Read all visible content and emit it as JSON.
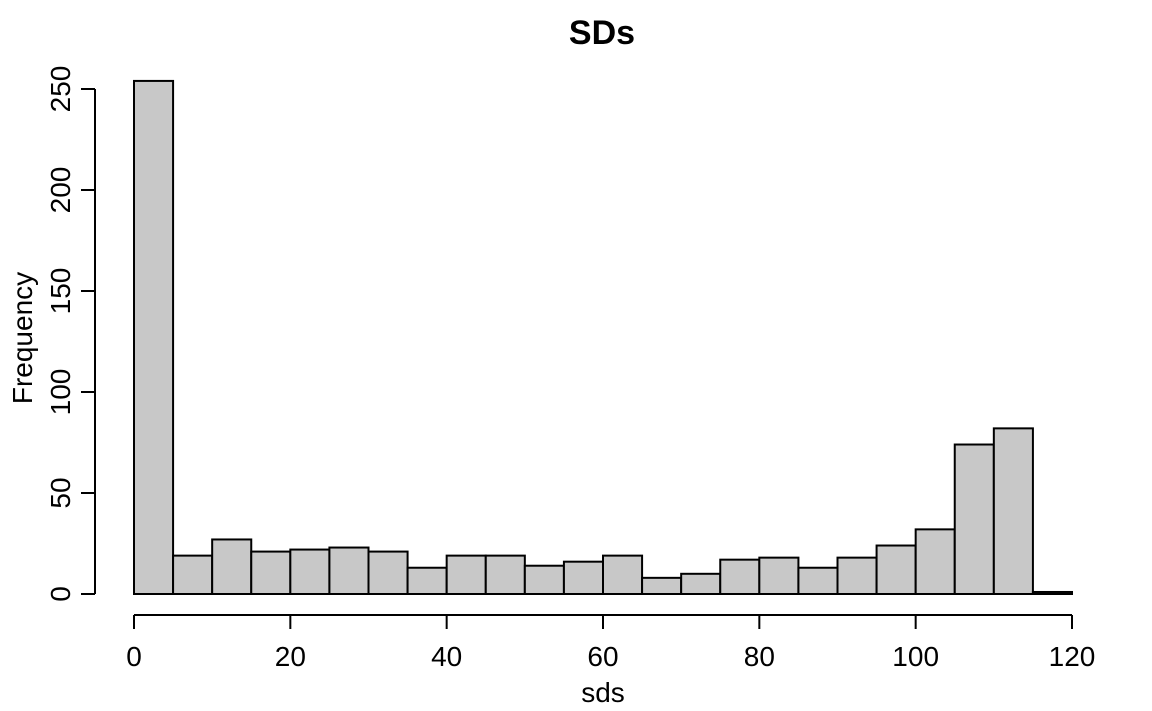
{
  "chart_data": {
    "type": "bar",
    "title": "SDs",
    "xlabel": "sds",
    "ylabel": "Frequency",
    "bin_width": 5,
    "bins": [
      [
        0,
        5
      ],
      [
        5,
        10
      ],
      [
        10,
        15
      ],
      [
        15,
        20
      ],
      [
        20,
        25
      ],
      [
        25,
        30
      ],
      [
        30,
        35
      ],
      [
        35,
        40
      ],
      [
        40,
        45
      ],
      [
        45,
        50
      ],
      [
        50,
        55
      ],
      [
        55,
        60
      ],
      [
        60,
        65
      ],
      [
        65,
        70
      ],
      [
        70,
        75
      ],
      [
        75,
        80
      ],
      [
        80,
        85
      ],
      [
        85,
        90
      ],
      [
        90,
        95
      ],
      [
        95,
        100
      ],
      [
        100,
        105
      ],
      [
        105,
        110
      ],
      [
        110,
        115
      ],
      [
        115,
        120
      ]
    ],
    "values": [
      254,
      19,
      27,
      21,
      22,
      23,
      21,
      13,
      19,
      19,
      14,
      16,
      19,
      8,
      10,
      17,
      18,
      13,
      18,
      24,
      32,
      74,
      82,
      1
    ],
    "xlim": [
      0,
      120
    ],
    "ylim": [
      0,
      250
    ],
    "xticks": [
      0,
      20,
      40,
      60,
      80,
      100,
      120
    ],
    "yticks": [
      0,
      50,
      100,
      150,
      200,
      250
    ],
    "grid": false,
    "colors": {
      "bar_fill": "#c8c8c8",
      "bar_stroke": "#000000"
    }
  }
}
